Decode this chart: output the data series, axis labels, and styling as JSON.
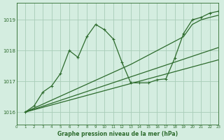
{
  "title": "Graphe pression niveau de la mer (hPa)",
  "bg_color": "#d4ede0",
  "grid_color": "#a8ccb8",
  "line_color": "#2d6b2d",
  "xlim": [
    0,
    23
  ],
  "ylim": [
    1015.6,
    1019.55
  ],
  "yticks": [
    1016,
    1017,
    1018,
    1019
  ],
  "xtick_labels": [
    "0",
    "1",
    "2",
    "3",
    "4",
    "5",
    "6",
    "7",
    "8",
    "9",
    "10",
    "11",
    "12",
    "13",
    "14",
    "15",
    "16",
    "17",
    "18",
    "19",
    "20",
    "21",
    "22",
    "23"
  ],
  "xticks": [
    0,
    1,
    2,
    3,
    4,
    5,
    6,
    7,
    8,
    9,
    10,
    11,
    12,
    13,
    14,
    15,
    16,
    17,
    18,
    19,
    20,
    21,
    22,
    23
  ],
  "series": [
    {
      "marker": "+",
      "x": [
        1,
        2,
        3,
        4,
        5,
        6,
        7,
        8,
        9,
        10,
        11,
        12,
        13,
        14,
        15,
        16,
        17,
        18,
        19,
        20,
        21,
        22,
        23
      ],
      "y": [
        1016.0,
        1016.2,
        1016.65,
        1016.85,
        1017.25,
        1018.0,
        1017.78,
        1018.45,
        1018.85,
        1018.68,
        1018.38,
        1017.62,
        1016.95,
        1016.95,
        1016.95,
        1017.05,
        1017.08,
        1017.75,
        1018.55,
        1019.0,
        1019.08,
        1019.22,
        1019.28
      ]
    },
    {
      "marker": null,
      "x": [
        1,
        13,
        19,
        20,
        21,
        22,
        23
      ],
      "y": [
        1016.0,
        1017.55,
        1018.45,
        1018.85,
        1019.0,
        1019.08,
        1019.15
      ]
    },
    {
      "marker": null,
      "x": [
        1,
        23
      ],
      "y": [
        1016.0,
        1018.1
      ]
    },
    {
      "marker": null,
      "x": [
        1,
        23
      ],
      "y": [
        1016.0,
        1017.7
      ]
    }
  ]
}
